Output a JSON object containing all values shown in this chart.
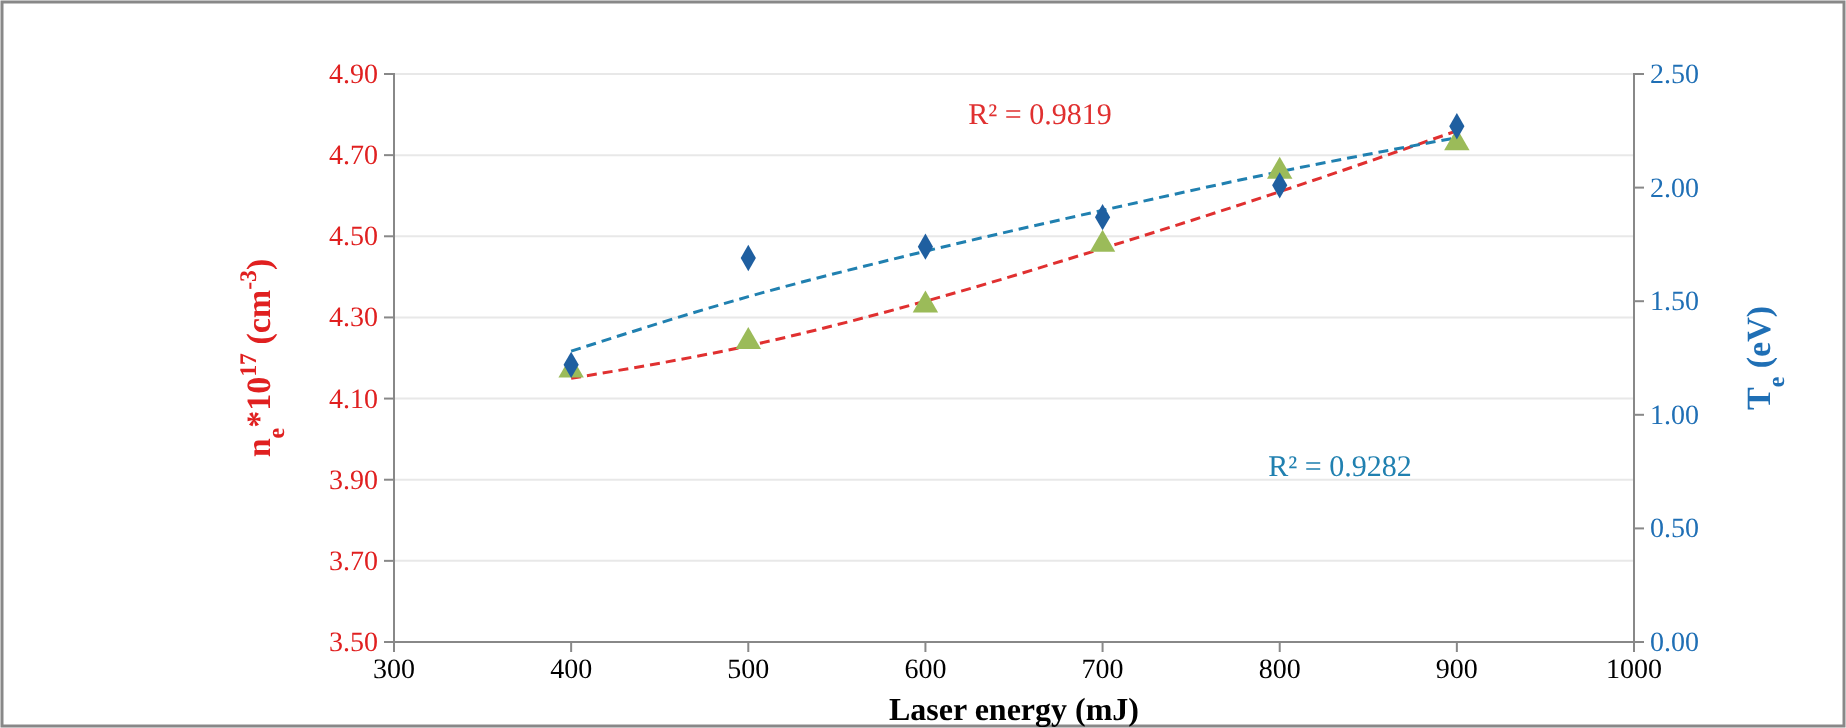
{
  "chart_data": {
    "type": "scatter",
    "xlabel": "Laser energy (mJ)",
    "ylabel": "n$_{e}$*10$^{17}$ (cm$^{-3}$)",
    "y2label": "T$_{e}$ (eV)",
    "x": [
      400,
      500,
      600,
      700,
      800,
      900
    ],
    "xlim": [
      300,
      1000
    ],
    "xticks": [
      300,
      400,
      500,
      600,
      700,
      800,
      900,
      1000
    ],
    "ylim": [
      3.5,
      4.9
    ],
    "yticks": [
      {
        "value": 3.5,
        "label": "3.50"
      },
      {
        "value": 3.7,
        "label": "3.70"
      },
      {
        "value": 3.9,
        "label": "3.90"
      },
      {
        "value": 4.1,
        "label": "4.10"
      },
      {
        "value": 4.3,
        "label": "4.30"
      },
      {
        "value": 4.5,
        "label": "4.50"
      },
      {
        "value": 4.7,
        "label": "4.70"
      },
      {
        "value": 4.9,
        "label": "4.90"
      }
    ],
    "y2lim": [
      0,
      2.5
    ],
    "y2ticks": [
      {
        "value": 0,
        "label": "0.00"
      },
      {
        "value": 0.5,
        "label": "0.50"
      },
      {
        "value": 1,
        "label": "1.00"
      },
      {
        "value": 1.5,
        "label": "1.50"
      },
      {
        "value": 2,
        "label": "2.00"
      },
      {
        "value": 2.5,
        "label": "2.50"
      }
    ],
    "grid": "y",
    "series": [
      {
        "color": "#9bbb59",
        "marker": "triangle",
        "values": [
          4.17,
          4.24,
          4.33,
          4.48,
          4.66,
          4.73
        ]
      },
      {
        "color": "#1f5fa0",
        "marker": "diamond",
        "axis": "y2",
        "values": [
          1.22,
          1.69,
          1.74,
          1.87,
          2.01,
          2.27
        ]
      },
      {
        "type": "line",
        "color": "#e03030",
        "line_style": "dashed",
        "x": [
          400,
          500,
          600,
          700,
          800,
          900
        ],
        "values": [
          4.15,
          4.23,
          4.34,
          4.47,
          4.61,
          4.76
        ]
      },
      {
        "type": "line",
        "color": "#2080b0",
        "line_style": "dashed",
        "axis": "y2",
        "x": [
          400,
          500,
          600,
          700,
          800,
          900
        ],
        "values": [
          1.28,
          1.52,
          1.72,
          1.9,
          2.07,
          2.22
        ]
      }
    ],
    "annotations": [
      "R² = 0.9819",
      "R² = 0.9282"
    ]
  }
}
